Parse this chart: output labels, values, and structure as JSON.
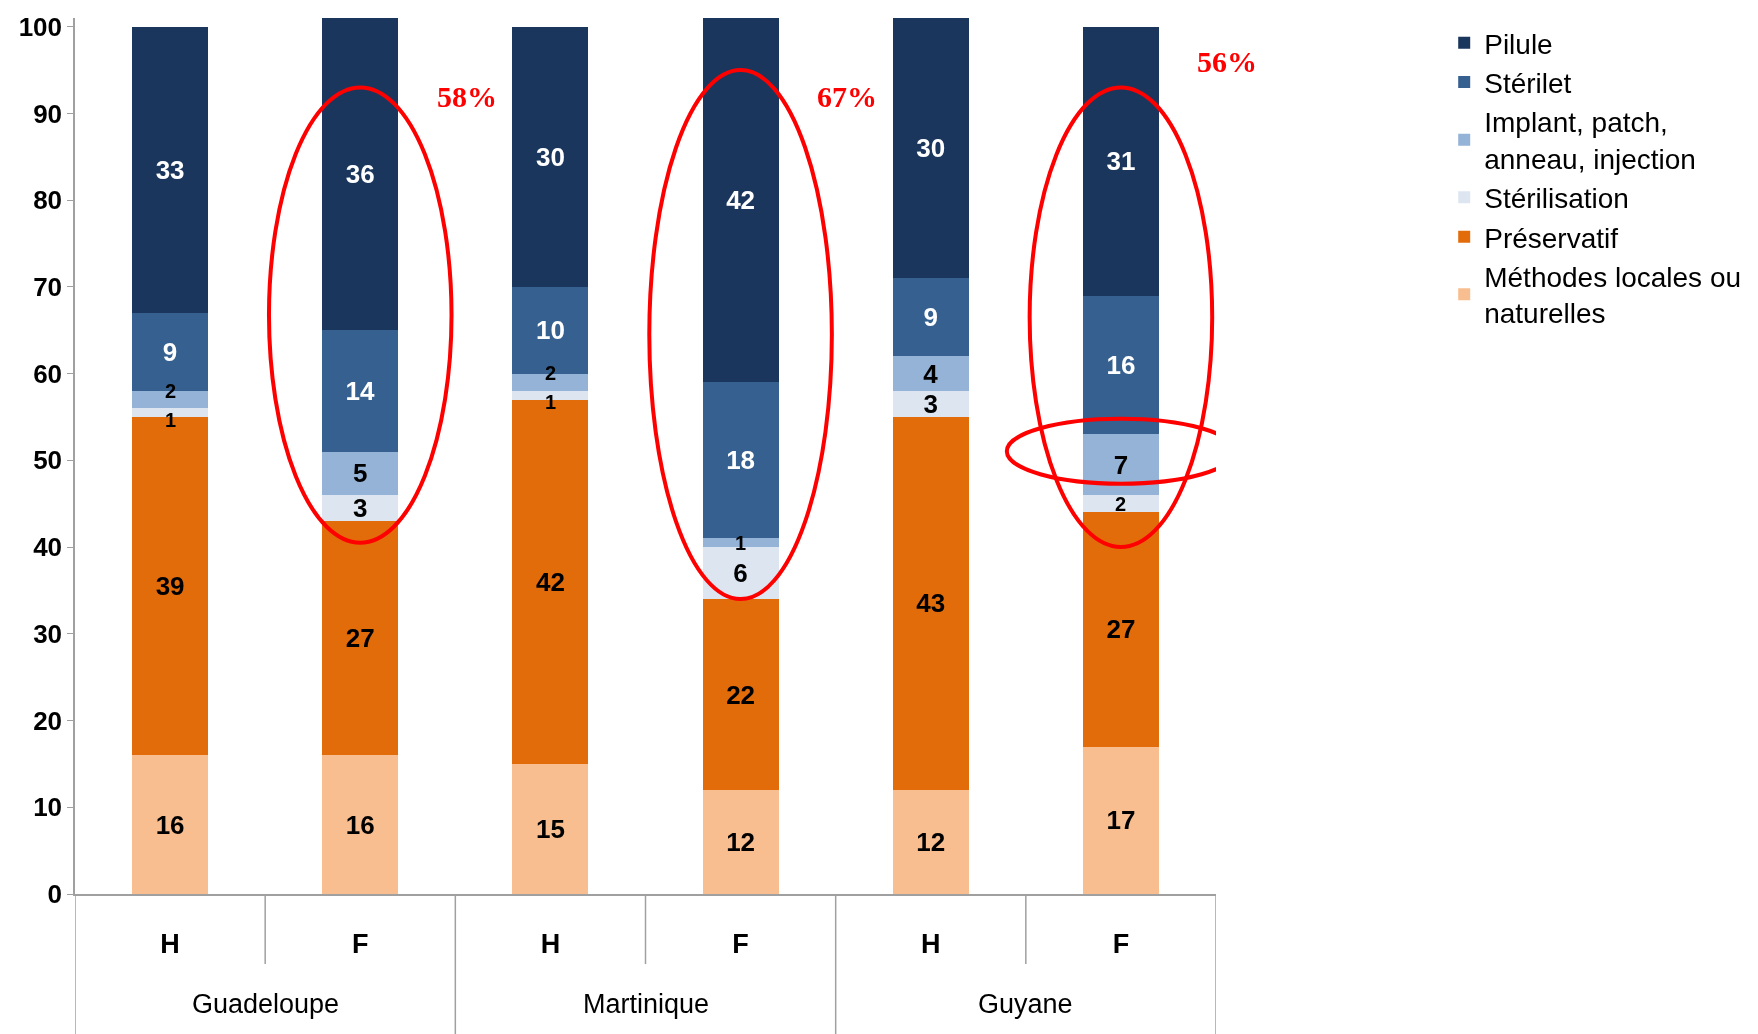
{
  "chart_data": {
    "type": "bar",
    "stacked": true,
    "data_labels": true,
    "legend": "right",
    "categories": [
      "H",
      "F",
      "H",
      "F",
      "H",
      "F"
    ],
    "series": [
      {
        "name": "Méthodes locales ou naturelles",
        "color": "#f9be8f",
        "values": [
          16,
          16,
          15,
          12,
          12,
          17
        ]
      },
      {
        "name": "Préservatif",
        "color": "#e36c0a",
        "values": [
          39,
          27,
          42,
          22,
          43,
          27
        ]
      },
      {
        "name": "Stérilisation",
        "color": "#dde6f0",
        "values": [
          1,
          3,
          1,
          6,
          3,
          2
        ]
      },
      {
        "name": "Implant, patch, anneau, injection",
        "color": "#94b3d7",
        "values": [
          2,
          5,
          2,
          1,
          4,
          7
        ]
      },
      {
        "name": "Stérilet",
        "color": "#35608f",
        "values": [
          9,
          14,
          10,
          18,
          9,
          16
        ]
      },
      {
        "name": "Pilule",
        "color": "#1b365d",
        "values": [
          33,
          36,
          30,
          42,
          30,
          31
        ]
      }
    ],
    "ylim": [
      0,
      101
    ],
    "yticks": [
      0,
      10,
      20,
      30,
      40,
      50,
      60,
      70,
      80,
      90,
      100
    ],
    "annotations": [
      "Guadeloupe",
      "Martinique",
      "Guyane",
      "58%",
      "67%",
      "56%"
    ]
  }
}
